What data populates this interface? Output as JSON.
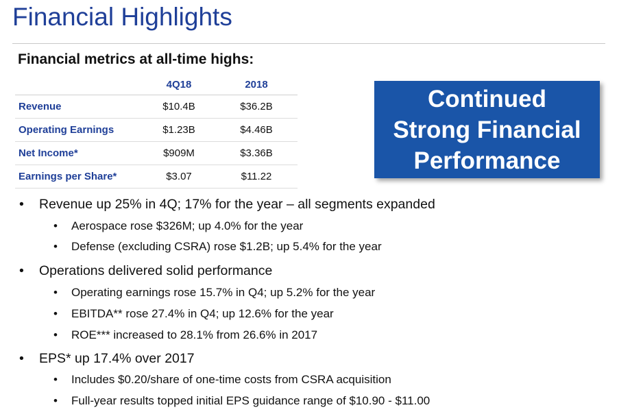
{
  "title": "Financial Highlights",
  "subtitle": "Financial metrics at all-time highs:",
  "table": {
    "columns": [
      "",
      "4Q18",
      "2018"
    ],
    "rows": [
      {
        "label": "Revenue",
        "q4": "$10.4B",
        "year": "$36.2B"
      },
      {
        "label": "Operating Earnings",
        "q4": "$1.23B",
        "year": "$4.46B"
      },
      {
        "label": "Net Income*",
        "q4": "$909M",
        "year": "$3.36B"
      },
      {
        "label": "Earnings per Share*",
        "q4": "$3.07",
        "year": "$11.22"
      }
    ]
  },
  "callout": {
    "line1": "Continued",
    "line2": "Strong Financial",
    "line3": "Performance"
  },
  "bullet_symbol": "•",
  "bullets": [
    {
      "text": "Revenue up 25% in 4Q; 17% for the year – all segments expanded",
      "sub": [
        "Aerospace rose $326M; up 4.0% for the year",
        "Defense (excluding CSRA) rose $1.2B; up 5.4% for the year"
      ]
    },
    {
      "text": "Operations delivered solid performance",
      "sub": [
        "Operating earnings rose 15.7% in Q4; up 5.2% for the year",
        "EBITDA** rose 27.4% in Q4; up 12.6% for the year",
        "ROE*** increased to 28.1% from 26.6% in 2017"
      ]
    },
    {
      "text": "EPS* up 17.4% over 2017",
      "sub": [
        "Includes $0.20/share of one-time costs from CSRA acquisition",
        "Full-year results topped initial EPS guidance range of $10.90 - $11.00"
      ]
    }
  ]
}
